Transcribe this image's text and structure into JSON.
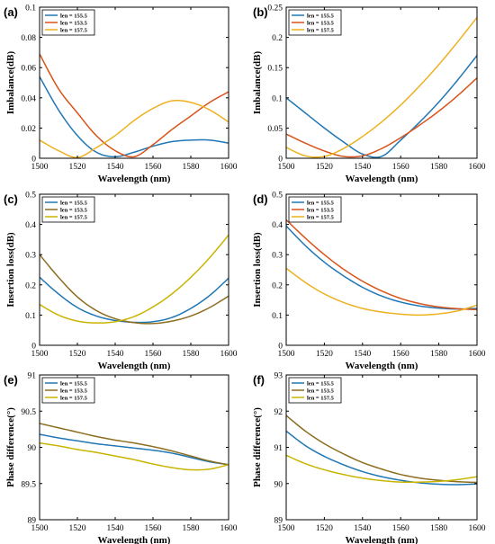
{
  "colors": {
    "axis": "#000000",
    "legend_box": "#000000"
  },
  "chart_data": [
    {
      "panel": "(a)",
      "type": "line",
      "xlabel": "Wavelength (nm)",
      "ylabel": "Imbalance(dB)",
      "xlim": [
        1500,
        1600
      ],
      "ylim": [
        0,
        0.1
      ],
      "xticks": [
        "1500",
        "1520",
        "1540",
        "1560",
        "1580",
        "1600"
      ],
      "yticks": [
        "0",
        "0.02",
        "0.04",
        "0.06",
        "0.08",
        "0.1"
      ],
      "legend_position": "top-left",
      "x": [
        1500,
        1510,
        1520,
        1530,
        1540,
        1550,
        1560,
        1570,
        1580,
        1590,
        1600
      ],
      "series": [
        {
          "name": "len = 155.5",
          "color": "#1f77b4",
          "values": [
            0.054,
            0.032,
            0.015,
            0.004,
            0.001,
            0.004,
            0.008,
            0.011,
            0.012,
            0.012,
            0.01
          ]
        },
        {
          "name": "len = 153.5",
          "color": "#d95319",
          "values": [
            0.069,
            0.046,
            0.03,
            0.015,
            0.005,
            0.001,
            0.009,
            0.019,
            0.028,
            0.037,
            0.044
          ]
        },
        {
          "name": "len = 157.5",
          "color": "#edb120",
          "values": [
            0.012,
            0.005,
            0.0005,
            0.007,
            0.015,
            0.025,
            0.033,
            0.038,
            0.037,
            0.032,
            0.024
          ]
        }
      ]
    },
    {
      "panel": "(b)",
      "type": "line",
      "xlabel": "Wavelength (nm)",
      "ylabel": "Imbalance(dB)",
      "xlim": [
        1500,
        1600
      ],
      "ylim": [
        0,
        0.25
      ],
      "xticks": [
        "1500",
        "1520",
        "1540",
        "1560",
        "1580",
        "1600"
      ],
      "yticks": [
        "0",
        "0.05",
        "0.1",
        "0.15",
        "0.2",
        "0.25"
      ],
      "legend_position": "top-left",
      "x": [
        1500,
        1510,
        1520,
        1530,
        1540,
        1550,
        1560,
        1570,
        1580,
        1590,
        1600
      ],
      "series": [
        {
          "name": "len = 155.5",
          "color": "#1f77b4",
          "values": [
            0.1,
            0.075,
            0.05,
            0.027,
            0.007,
            0.003,
            0.03,
            0.06,
            0.093,
            0.13,
            0.17
          ]
        },
        {
          "name": "len = 153.5",
          "color": "#d95319",
          "values": [
            0.04,
            0.025,
            0.012,
            0.003,
            0.004,
            0.016,
            0.034,
            0.055,
            0.078,
            0.104,
            0.133
          ]
        },
        {
          "name": "len = 157.5",
          "color": "#edb120",
          "values": [
            0.018,
            0.004,
            0.003,
            0.016,
            0.036,
            0.06,
            0.088,
            0.12,
            0.155,
            0.193,
            0.233
          ]
        }
      ]
    },
    {
      "panel": "(c)",
      "type": "line",
      "xlabel": "Wavelength (nm)",
      "ylabel": "Insertion loss(dB)",
      "xlim": [
        1500,
        1600
      ],
      "ylim": [
        0,
        0.5
      ],
      "xticks": [
        "1500",
        "1520",
        "1540",
        "1560",
        "1580",
        "1600"
      ],
      "yticks": [
        "0",
        "0.1",
        "0.2",
        "0.3",
        "0.4",
        "0.5"
      ],
      "legend_position": "top-left",
      "x": [
        1500,
        1510,
        1520,
        1530,
        1540,
        1550,
        1560,
        1570,
        1580,
        1590,
        1600
      ],
      "series": [
        {
          "name": "len = 155.5",
          "color": "#1f77b4",
          "values": [
            0.225,
            0.17,
            0.125,
            0.097,
            0.082,
            0.076,
            0.078,
            0.092,
            0.122,
            0.165,
            0.222
          ]
        },
        {
          "name": "len = 153.5",
          "color": "#8c6d1f",
          "values": [
            0.3,
            0.225,
            0.16,
            0.115,
            0.088,
            0.075,
            0.072,
            0.08,
            0.097,
            0.125,
            0.163
          ]
        },
        {
          "name": "len = 157.5",
          "color": "#c9b400",
          "values": [
            0.135,
            0.1,
            0.08,
            0.074,
            0.078,
            0.095,
            0.127,
            0.17,
            0.225,
            0.29,
            0.365
          ]
        }
      ]
    },
    {
      "panel": "(d)",
      "type": "line",
      "xlabel": "Wavelength (nm)",
      "ylabel": "Insertion loss(dB)",
      "xlim": [
        1500,
        1600
      ],
      "ylim": [
        0,
        0.5
      ],
      "xticks": [
        "1500",
        "1520",
        "1540",
        "1560",
        "1580",
        "1600"
      ],
      "yticks": [
        "0",
        "0.1",
        "0.2",
        "0.3",
        "0.4",
        "0.5"
      ],
      "legend_position": "top-left",
      "x": [
        1500,
        1510,
        1520,
        1530,
        1540,
        1550,
        1560,
        1570,
        1580,
        1590,
        1600
      ],
      "series": [
        {
          "name": "len = 155.5",
          "color": "#1f77b4",
          "values": [
            0.395,
            0.33,
            0.275,
            0.23,
            0.192,
            0.163,
            0.143,
            0.13,
            0.123,
            0.12,
            0.122
          ]
        },
        {
          "name": "len = 153.5",
          "color": "#d95319",
          "values": [
            0.415,
            0.355,
            0.3,
            0.252,
            0.212,
            0.18,
            0.155,
            0.138,
            0.127,
            0.121,
            0.118
          ]
        },
        {
          "name": "len = 157.5",
          "color": "#edb120",
          "values": [
            0.255,
            0.208,
            0.17,
            0.142,
            0.122,
            0.11,
            0.103,
            0.1,
            0.104,
            0.114,
            0.133
          ]
        }
      ]
    },
    {
      "panel": "(e)",
      "type": "line",
      "xlabel": "Wavelength (nm)",
      "ylabel": "Phase difference(°)",
      "xlim": [
        1500,
        1600
      ],
      "ylim": [
        89,
        91
      ],
      "xticks": [
        "1500",
        "1520",
        "1540",
        "1560",
        "1580",
        "1600"
      ],
      "yticks": [
        "89",
        "89.5",
        "90",
        "90.5",
        "91"
      ],
      "legend_position": "top-left",
      "x": [
        1500,
        1510,
        1520,
        1530,
        1540,
        1550,
        1560,
        1570,
        1580,
        1590,
        1600
      ],
      "series": [
        {
          "name": "len = 155.5",
          "color": "#1f77b4",
          "values": [
            90.18,
            90.13,
            90.09,
            90.05,
            90.02,
            89.99,
            89.96,
            89.92,
            89.86,
            89.8,
            89.76
          ]
        },
        {
          "name": "len = 153.5",
          "color": "#8c6d1f",
          "values": [
            90.33,
            90.27,
            90.21,
            90.15,
            90.1,
            90.06,
            90.01,
            89.95,
            89.88,
            89.81,
            89.76
          ]
        },
        {
          "name": "len = 157.5",
          "color": "#c9b400",
          "values": [
            90.06,
            90.02,
            89.97,
            89.93,
            89.88,
            89.83,
            89.77,
            89.72,
            89.69,
            89.7,
            89.76
          ]
        }
      ]
    },
    {
      "panel": "(f)",
      "type": "line",
      "xlabel": "Wavelength (nm)",
      "ylabel": "Phase difference(°)",
      "xlim": [
        1500,
        1600
      ],
      "ylim": [
        89,
        93
      ],
      "xticks": [
        "1500",
        "1520",
        "1540",
        "1560",
        "1580",
        "1600"
      ],
      "yticks": [
        "89",
        "90",
        "91",
        "92",
        "93"
      ],
      "legend_position": "top-left",
      "x": [
        1500,
        1510,
        1520,
        1530,
        1540,
        1550,
        1560,
        1570,
        1580,
        1590,
        1600
      ],
      "series": [
        {
          "name": "len = 155.5",
          "color": "#1f77b4",
          "values": [
            91.45,
            91.05,
            90.75,
            90.52,
            90.33,
            90.19,
            90.09,
            90.02,
            89.98,
            89.97,
            89.99
          ]
        },
        {
          "name": "len = 153.5",
          "color": "#8c6d1f",
          "values": [
            91.88,
            91.45,
            91.1,
            90.82,
            90.58,
            90.4,
            90.25,
            90.15,
            90.09,
            90.05,
            90.03
          ]
        },
        {
          "name": "len = 157.5",
          "color": "#c9b400",
          "values": [
            90.78,
            90.55,
            90.38,
            90.25,
            90.15,
            90.08,
            90.04,
            90.04,
            90.06,
            90.11,
            90.19
          ]
        }
      ]
    }
  ]
}
